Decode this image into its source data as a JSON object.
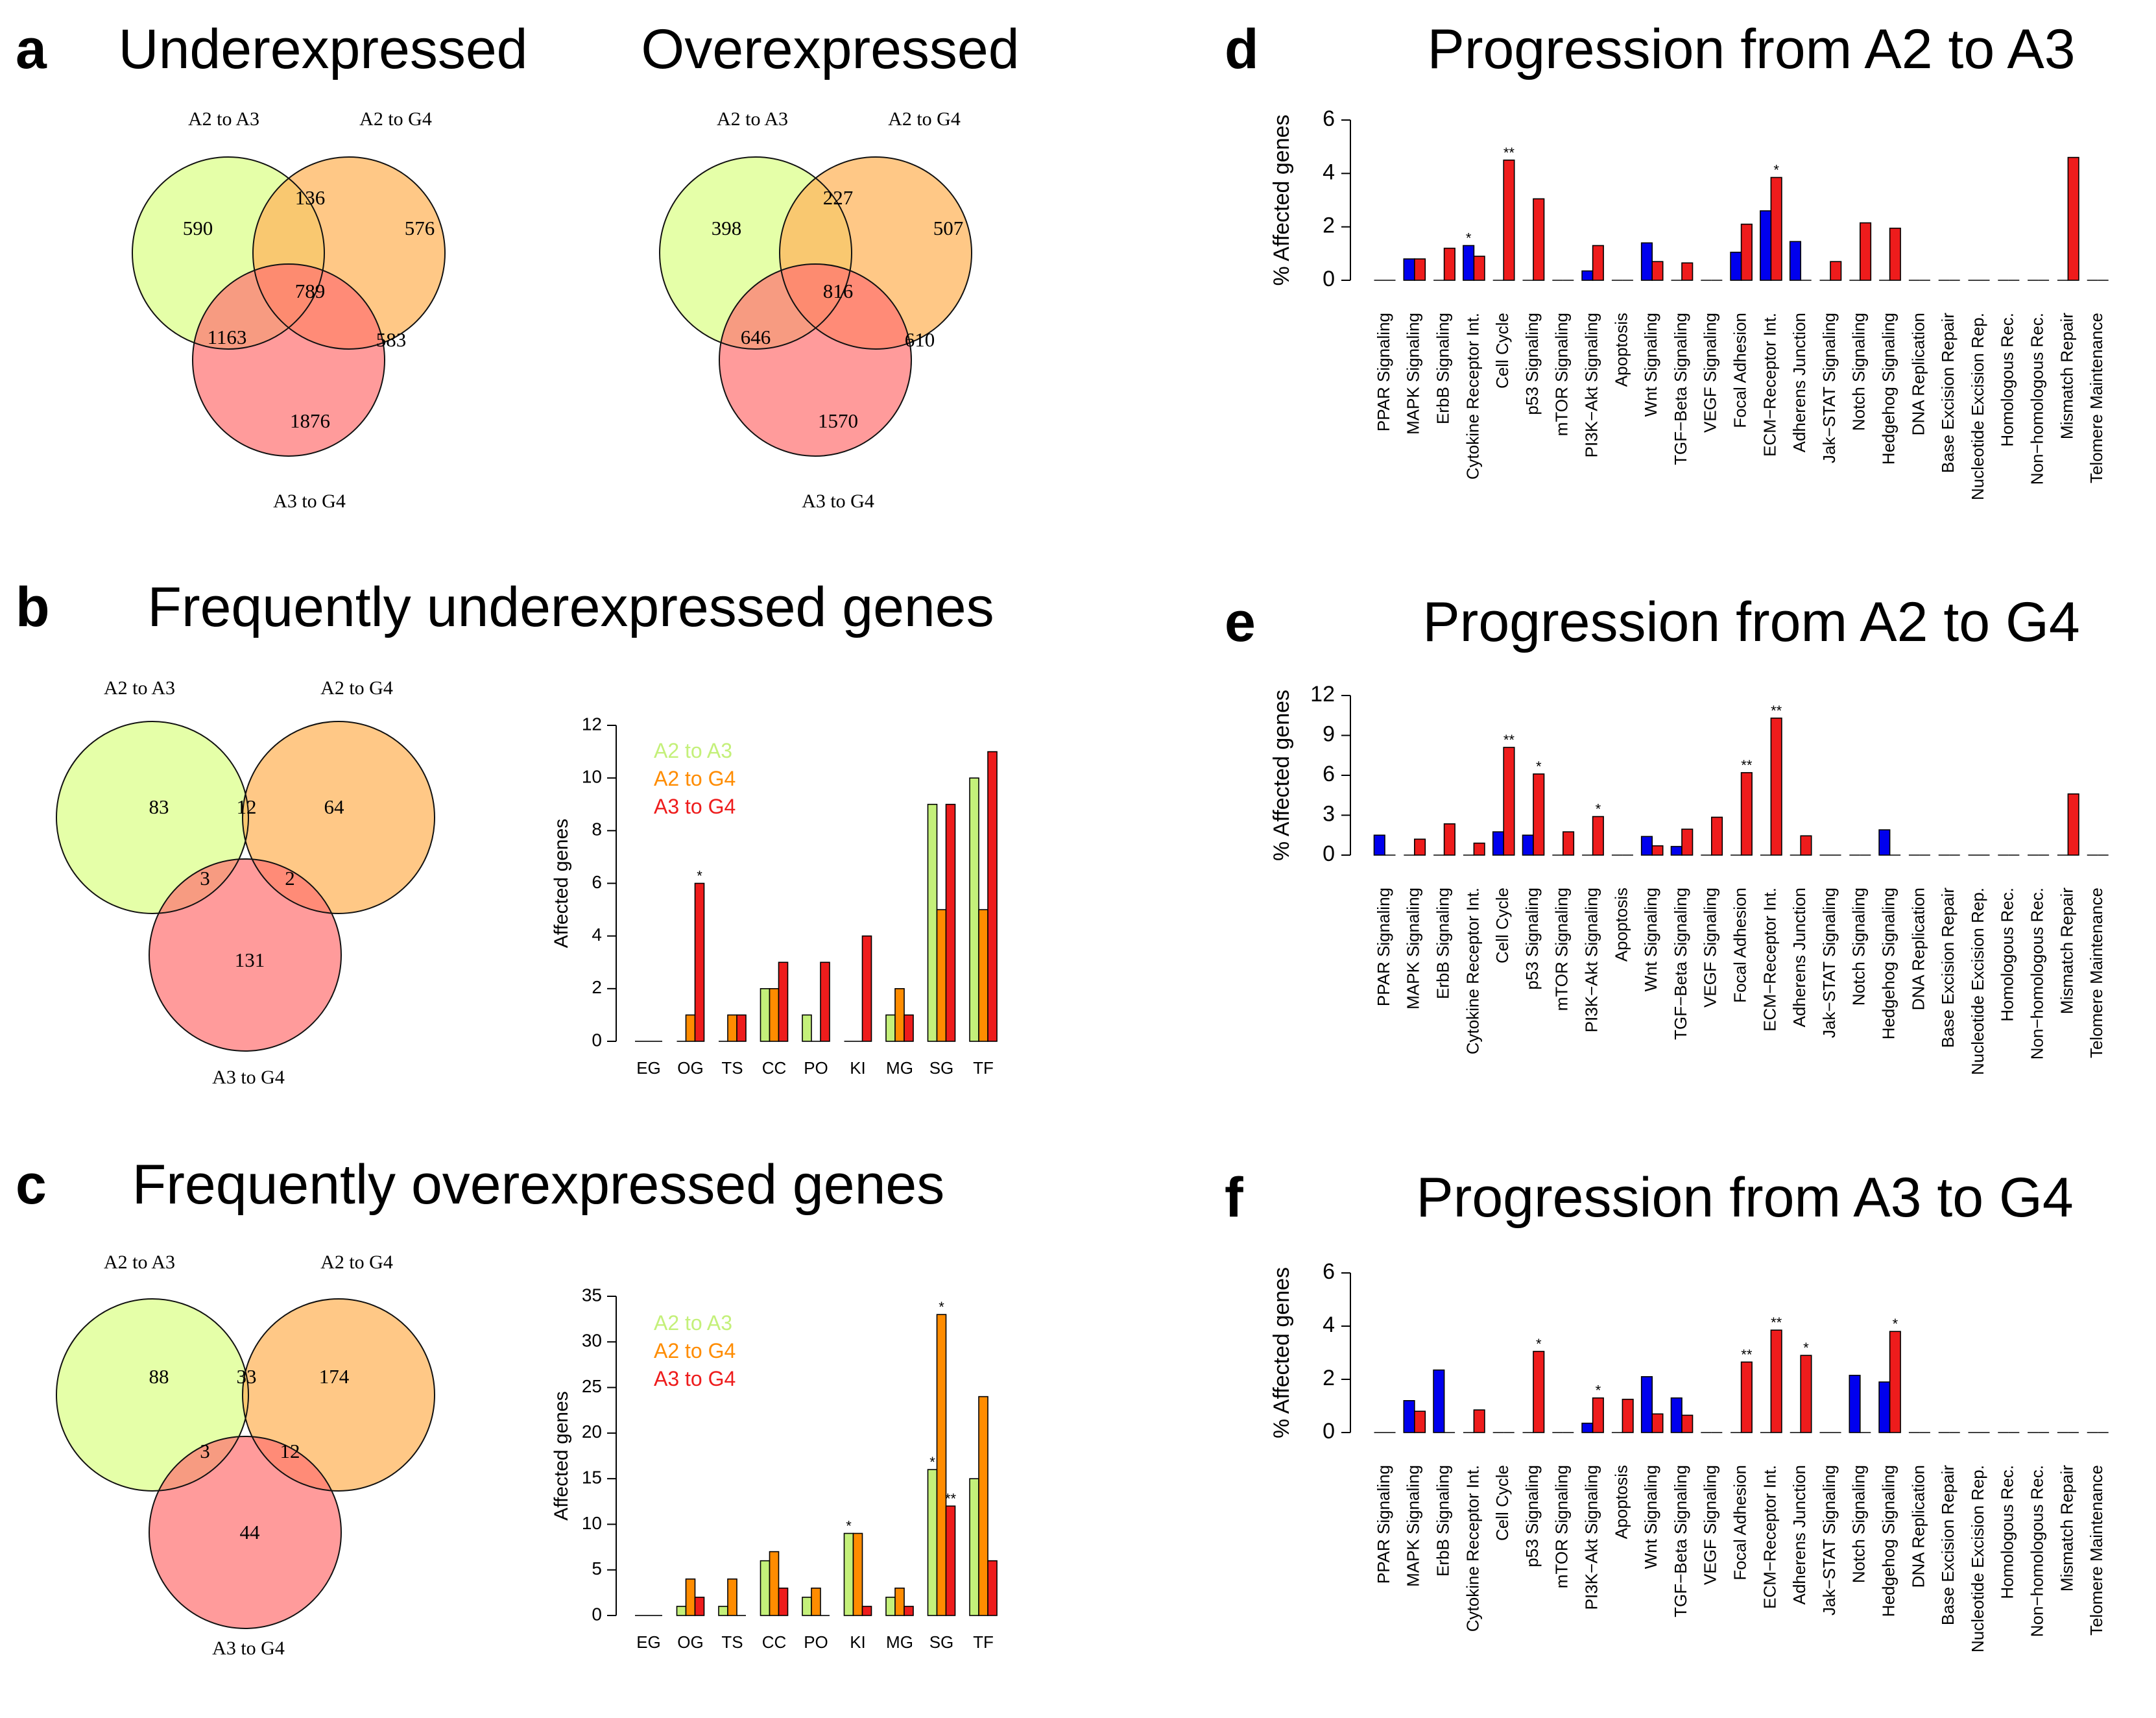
{
  "pathway_labels": [
    "PPAR Signaling",
    "MAPK Signaling",
    "ErbB Signaling",
    "Cytokine Receptor Int.",
    "Cell Cycle",
    "p53 Signaling",
    "mTOR Signaling",
    "PI3K−Akt Signaling",
    "Apoptosis",
    "Wnt Signaling",
    "TGF−Beta Signaling",
    "VEGF Signaling",
    "Focal Adhesion",
    "ECM−Receptor Int.",
    "Adherens Junction",
    "Jak−STAT Signaling",
    "Notch Signaling",
    "Hedgehog Signaling",
    "DNA Replication",
    "Base Excision Repair",
    "Nucleotide Excision Rep.",
    "Homologous Rec.",
    "Non−homologous Rec.",
    "Mismatch Repair",
    "Telomere Maintenance"
  ],
  "colors": {
    "a2a3": "#e0ff99",
    "a2g4": "#ffb55e",
    "a3g4": "#ff7070",
    "bar_green": "#c4f07a",
    "bar_orange": "#ff8c00",
    "bar_red": "#ee1c1c",
    "bar_blue": "#0000ee",
    "legend_green": "#c4f07a",
    "legend_orange": "#ff8c00",
    "legend_red": "#ee1c1c"
  },
  "chart_data": [
    {
      "id": "a_under",
      "type": "venn",
      "panel_letter": "a",
      "title": "Underexpressed",
      "sets": [
        "A2 to A3",
        "A2 to G4",
        "A3 to G4"
      ],
      "regions": {
        "a_only": "590",
        "b_only": "576",
        "c_only": "1876",
        "ab": "136",
        "ac": "1163",
        "bc": "583",
        "abc": "789"
      }
    },
    {
      "id": "a_over",
      "type": "venn",
      "title": "Overexpressed",
      "sets": [
        "A2 to A3",
        "A2 to G4",
        "A3 to G4"
      ],
      "regions": {
        "a_only": "398",
        "b_only": "507",
        "c_only": "1570",
        "ab": "227",
        "ac": "646",
        "bc": "610",
        "abc": "816"
      }
    },
    {
      "id": "b_venn",
      "type": "venn",
      "panel_letter": "b",
      "title": "Frequently underexpressed genes",
      "sets": [
        "A2 to A3",
        "A2 to G4",
        "A3 to G4"
      ],
      "regions": {
        "a_only": "83",
        "b_only": "64",
        "c_only": "131",
        "ab": "12",
        "ac": "3",
        "bc": "2"
      }
    },
    {
      "id": "b_bar",
      "type": "bar",
      "ylabel": "Affected genes",
      "ylim": [
        0,
        12
      ],
      "yticks": [
        0,
        2,
        4,
        6,
        8,
        10,
        12
      ],
      "categories": [
        "EG",
        "OG",
        "TS",
        "CC",
        "PO",
        "KI",
        "MG",
        "SG",
        "TF"
      ],
      "legend": [
        "A2 to A3",
        "A2 to G4",
        "A3 to G4"
      ],
      "series": [
        {
          "name": "A2 to A3",
          "values": [
            0,
            0,
            0,
            2,
            1,
            0,
            1,
            9,
            10
          ]
        },
        {
          "name": "A2 to G4",
          "values": [
            0,
            1,
            1,
            2,
            0,
            0,
            2,
            5,
            5
          ]
        },
        {
          "name": "A3 to G4",
          "values": [
            0,
            6,
            1,
            3,
            3,
            4,
            1,
            9,
            11
          ]
        }
      ],
      "stars": [
        {
          "cat": 1,
          "series": 2,
          "text": "*"
        }
      ]
    },
    {
      "id": "c_venn",
      "type": "venn",
      "panel_letter": "c",
      "title": "Frequently overexpressed genes",
      "sets": [
        "A2 to A3",
        "A2 to G4",
        "A3 to G4"
      ],
      "regions": {
        "a_only": "88",
        "b_only": "174",
        "c_only": "44",
        "ab": "33",
        "ac": "3",
        "bc": "12"
      }
    },
    {
      "id": "c_bar",
      "type": "bar",
      "ylabel": "Affected genes",
      "ylim": [
        0,
        35
      ],
      "yticks": [
        0,
        5,
        10,
        15,
        20,
        25,
        30,
        35
      ],
      "categories": [
        "EG",
        "OG",
        "TS",
        "CC",
        "PO",
        "KI",
        "MG",
        "SG",
        "TF"
      ],
      "legend": [
        "A2 to A3",
        "A2 to G4",
        "A3 to G4"
      ],
      "series": [
        {
          "name": "A2 to A3",
          "values": [
            0,
            1,
            1,
            6,
            2,
            9,
            2,
            16,
            15
          ]
        },
        {
          "name": "A2 to G4",
          "values": [
            0,
            4,
            4,
            7,
            3,
            9,
            3,
            33,
            24
          ]
        },
        {
          "name": "A3 to G4",
          "values": [
            0,
            2,
            0,
            3,
            0,
            1,
            1,
            12,
            6
          ]
        }
      ],
      "stars": [
        {
          "cat": 5,
          "series": 0,
          "text": "*"
        },
        {
          "cat": 7,
          "series": 0,
          "text": "*"
        },
        {
          "cat": 7,
          "series": 1,
          "text": "*"
        },
        {
          "cat": 7,
          "series": 2,
          "text": "**"
        }
      ]
    },
    {
      "id": "d_bar",
      "type": "bar",
      "panel_letter": "d",
      "title": "Progression from A2 to A3",
      "ylabel": "% Affected genes",
      "ylim": [
        0,
        6
      ],
      "yticks": [
        0,
        2,
        4,
        6
      ],
      "series": [
        {
          "name": "blue",
          "values": [
            0,
            0.8,
            0,
            1.3,
            0,
            0,
            0,
            0.35,
            0,
            1.4,
            0,
            0,
            1.05,
            2.6,
            1.45,
            0,
            0,
            0,
            0,
            0,
            0,
            0,
            0,
            0,
            0
          ]
        },
        {
          "name": "red",
          "values": [
            0,
            0.8,
            1.2,
            0.9,
            4.5,
            3.05,
            0,
            1.3,
            0,
            0.7,
            0.65,
            0,
            2.1,
            3.85,
            0,
            0.7,
            2.15,
            1.95,
            0,
            0,
            0,
            0,
            0,
            4.6,
            0
          ]
        }
      ],
      "stars": [
        {
          "cat": 3,
          "series": 0,
          "text": "*"
        },
        {
          "cat": 4,
          "series": 1,
          "text": "**"
        },
        {
          "cat": 13,
          "series": 1,
          "text": "*"
        }
      ]
    },
    {
      "id": "e_bar",
      "type": "bar",
      "panel_letter": "e",
      "title": "Progression from A2 to G4",
      "ylabel": "% Affected genes",
      "ylim": [
        0,
        12
      ],
      "yticks": [
        0,
        3,
        6,
        9,
        12
      ],
      "series": [
        {
          "name": "blue",
          "values": [
            1.5,
            0,
            0,
            0,
            1.75,
            1.5,
            0,
            0,
            0,
            1.4,
            0.65,
            0,
            0,
            0,
            0,
            0,
            0,
            1.9,
            0,
            0,
            0,
            0,
            0,
            0,
            0
          ]
        },
        {
          "name": "red",
          "values": [
            0,
            1.2,
            2.35,
            0.9,
            8.1,
            6.1,
            1.75,
            2.9,
            0,
            0.7,
            1.95,
            2.85,
            6.2,
            10.3,
            1.45,
            0,
            0,
            0,
            0,
            0,
            0,
            0,
            0,
            4.6,
            0
          ]
        }
      ],
      "stars": [
        {
          "cat": 4,
          "series": 1,
          "text": "**"
        },
        {
          "cat": 5,
          "series": 1,
          "text": "*"
        },
        {
          "cat": 7,
          "series": 1,
          "text": "*"
        },
        {
          "cat": 12,
          "series": 1,
          "text": "**"
        },
        {
          "cat": 13,
          "series": 1,
          "text": "**"
        }
      ]
    },
    {
      "id": "f_bar",
      "type": "bar",
      "panel_letter": "f",
      "title": "Progression from A3 to G4",
      "ylabel": "% Affected genes",
      "ylim": [
        0,
        6
      ],
      "yticks": [
        0,
        2,
        4,
        6
      ],
      "series": [
        {
          "name": "blue",
          "values": [
            0,
            1.2,
            2.35,
            0,
            0,
            0,
            0,
            0.35,
            0,
            2.1,
            1.3,
            0,
            0,
            0,
            0,
            0,
            2.15,
            1.9,
            0,
            0,
            0,
            0,
            0,
            0,
            0
          ]
        },
        {
          "name": "red",
          "values": [
            0,
            0.8,
            0,
            0.85,
            0,
            3.05,
            0,
            1.3,
            1.25,
            0.7,
            0.65,
            0,
            2.65,
            3.85,
            2.9,
            0,
            0,
            3.8,
            0,
            0,
            0,
            0,
            0,
            0,
            0
          ]
        }
      ],
      "stars": [
        {
          "cat": 5,
          "series": 1,
          "text": "*"
        },
        {
          "cat": 7,
          "series": 1,
          "text": "*"
        },
        {
          "cat": 12,
          "series": 1,
          "text": "**"
        },
        {
          "cat": 13,
          "series": 1,
          "text": "**"
        },
        {
          "cat": 14,
          "series": 1,
          "text": "*"
        },
        {
          "cat": 17,
          "series": 1,
          "text": "*"
        }
      ]
    }
  ]
}
